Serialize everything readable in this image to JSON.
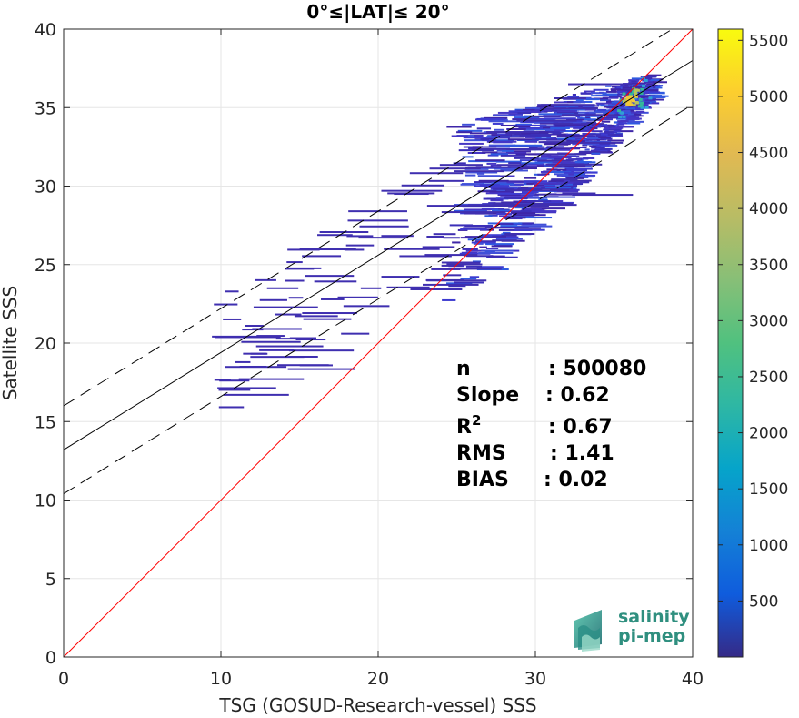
{
  "chart_data": {
    "type": "heatmap",
    "title": "0°≤|LAT|≤ 20°",
    "xlabel": "TSG (GOSUD-Research-vessel) SSS",
    "ylabel": "Satellite SSS",
    "xlim": [
      0,
      40
    ],
    "ylim": [
      0,
      40
    ],
    "xticks": [
      "0",
      "10",
      "20",
      "30",
      "40"
    ],
    "yticks": [
      "0",
      "5",
      "10",
      "15",
      "20",
      "25",
      "30",
      "35",
      "40"
    ],
    "grid": true,
    "colormap": "parula",
    "colorbar": {
      "range": [
        0,
        5600
      ],
      "ticks": [
        "500",
        "1000",
        "1500",
        "2000",
        "2500",
        "3000",
        "3500",
        "4000",
        "4500",
        "5000",
        "5500"
      ]
    },
    "lines": {
      "identity": {
        "slope": 1,
        "intercept": 0,
        "color": "#ff0000"
      },
      "fit": {
        "slope": 0.62,
        "intercept": 13.2,
        "color": "#000000"
      },
      "upper_band": {
        "slope": 0.62,
        "intercept": 16.0,
        "style": "dashed"
      },
      "lower_band": {
        "slope": 0.62,
        "intercept": 10.4,
        "style": "dashed"
      }
    },
    "density_peak": {
      "x": 36,
      "y": 35.5
    },
    "stats": [
      {
        "label": "n",
        "value": ": 500080"
      },
      {
        "label": "Slope",
        "value": ": 0.62"
      },
      {
        "label": "R",
        "sup": "2",
        "value": ": 0.67"
      },
      {
        "label": "RMS",
        "value": ": 1.41"
      },
      {
        "label": "BIAS",
        "value": ": 0.02"
      }
    ]
  },
  "logo": {
    "line1": "salinity",
    "line2": "pi-mep"
  }
}
